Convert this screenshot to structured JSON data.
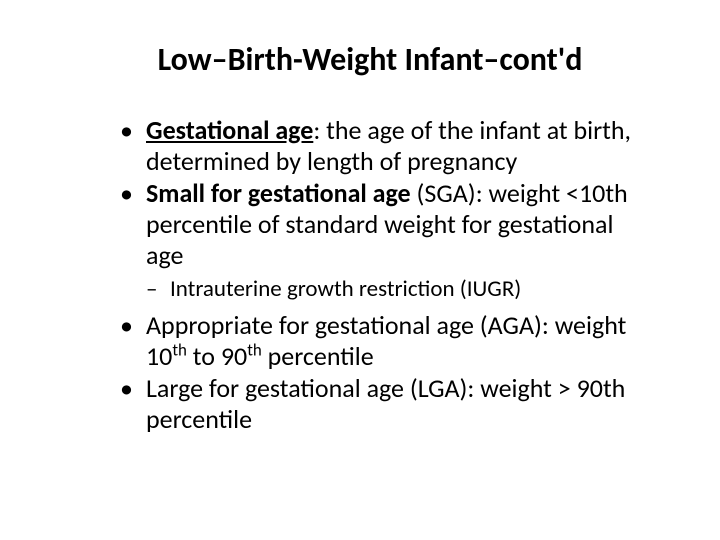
{
  "title": "Low–Birth-Weight Infant–cont'd",
  "bullets": {
    "b1_term": "Gestational age",
    "b1_rest": ": the age of the infant at birth, determined by length of pregnancy",
    "b2_term": "Small for gestational age",
    "b2_rest1": " (SGA): weight <10",
    "b2_th": "th",
    "b2_rest2": " percentile of standard weight for gestational age",
    "sub1": "Intrauterine growth restriction (IUGR)",
    "b3_pre": "Appropriate for gestational age (AGA): weight 10",
    "b3_th1": "th",
    "b3_mid": " to 90",
    "b3_th2": "th",
    "b3_end": " percentile",
    "b4_pre": "Large for gestational age (LGA): weight > 90",
    "b4_th": "th",
    "b4_end": " percentile"
  },
  "colors": {
    "background": "#ffffff",
    "text": "#000000"
  },
  "fonts": {
    "title_size": 32,
    "bullet_size": 26,
    "sub_bullet_size": 23
  }
}
